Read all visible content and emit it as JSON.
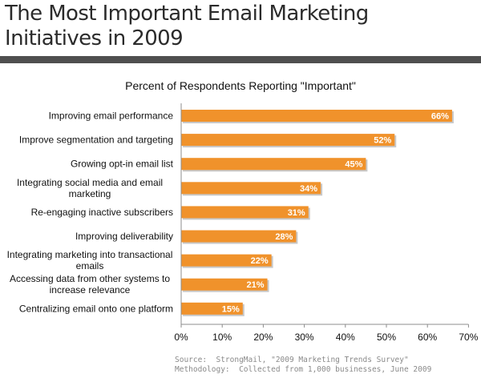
{
  "page": {
    "title_line1": "The Most Important Email Marketing",
    "title_line2": "Initiatives in 2009",
    "source": "Source:  StrongMail, \"2009 Marketing Trends Survey\"",
    "methodology": "Methodology:  Collected from 1,000 businesses, June 2009"
  },
  "colors": {
    "bar": "#f0922b",
    "bar_shadow": "#9a9a9a",
    "title_rule": "#4f4f4f",
    "axis": "#8c8c8c"
  },
  "chart_data": {
    "type": "bar",
    "orientation": "horizontal",
    "title": "Percent of Respondents Reporting \"Important\"",
    "categories": [
      [
        "Improving email performance"
      ],
      [
        "Improve segmentation and targeting"
      ],
      [
        "Growing opt-in email list"
      ],
      [
        "Integrating social media and email",
        "marketing"
      ],
      [
        "Re-engaging inactive subscribers"
      ],
      [
        "Improving deliverability"
      ],
      [
        "Integrating marketing into transactional",
        "emails"
      ],
      [
        "Accessing data from other systems to",
        "increase relevance"
      ],
      [
        "Centralizing email onto one platform"
      ]
    ],
    "values": [
      66,
      52,
      45,
      34,
      31,
      28,
      22,
      21,
      15
    ],
    "data_labels": [
      "66%",
      "52%",
      "45%",
      "34%",
      "31%",
      "28%",
      "22%",
      "21%",
      "15%"
    ],
    "x_ticks": [
      0,
      10,
      20,
      30,
      40,
      50,
      60,
      70
    ],
    "x_tick_labels": [
      "0%",
      "10%",
      "20%",
      "30%",
      "40%",
      "50%",
      "60%",
      "70%"
    ],
    "xlim": [
      0,
      70
    ],
    "xlabel": "",
    "ylabel": "",
    "grid": false,
    "legend": "none"
  }
}
